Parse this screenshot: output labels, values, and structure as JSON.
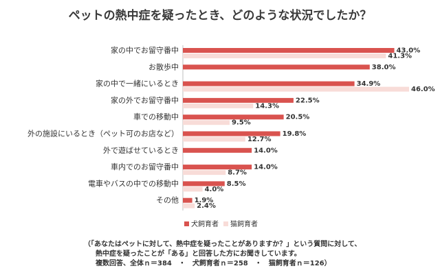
{
  "chart_data": {
    "type": "bar",
    "orientation": "horizontal",
    "title": "ペットの熱中症を疑ったとき、どのような状況でしたか？",
    "categories": [
      "家の中でお留守番中",
      "お散歩中",
      "家の中で一緒にいるとき",
      "家の外でお留守番中",
      "車での移動中",
      "外の施設にいるとき（ペット可のお店など）",
      "外で遊ばせているとき",
      "車内でのお留守番中",
      "電車やバスの中での移動中",
      "その他"
    ],
    "series": [
      {
        "name": "犬飼育者",
        "color": "#d9534f",
        "values": [
          43.0,
          38.0,
          34.9,
          22.5,
          20.5,
          19.8,
          14.0,
          14.0,
          8.5,
          1.9
        ],
        "labels": [
          "43.0%",
          "38.0%",
          "34.9%",
          "22.5%",
          "20.5%",
          "19.8%",
          "14.0%",
          "14.0%",
          "8.5%",
          "1.9%"
        ]
      },
      {
        "name": "猫飼育者",
        "color": "#f8dcd8",
        "values": [
          41.3,
          null,
          46.0,
          14.3,
          9.5,
          12.7,
          null,
          8.7,
          4.0,
          2.4
        ],
        "labels": [
          "41.3%",
          "",
          "46.0%",
          "14.3%",
          "9.5%",
          "12.7%",
          "",
          "8.7%",
          "4.0%",
          "2.4%"
        ]
      }
    ],
    "xlim": [
      0,
      50
    ],
    "grid": false,
    "legend_position": "bottom"
  },
  "notes": [
    "（「あなたはペットに対して、熱中症を疑ったことがありますか？」という質問に対して、",
    "熱中症を疑ったことが「ある」と回答した方にお聞きしています。",
    "複数回答、全体ｎ＝384　・　犬飼育者ｎ＝258　・　猫飼育者ｎ＝126）"
  ]
}
